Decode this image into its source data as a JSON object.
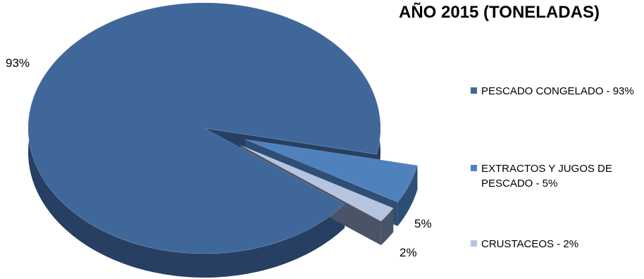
{
  "chart_data": {
    "type": "pie",
    "title": "AÑO 2015 (TONELADAS)",
    "categories": [
      "PESCADO CONGELADO",
      "EXTRACTOS Y JUGOS DE PESCADO",
      "CRUSTACEOS"
    ],
    "values": [
      93,
      5,
      2
    ],
    "data_labels": [
      "93%",
      "5%",
      "2%"
    ],
    "legend_entries": [
      "PESCADO CONGELADO - 93%",
      "EXTRACTOS Y JUGOS DE PESCADO - 5%",
      "CRUSTACEOS - 2%"
    ],
    "legend_position": "right",
    "style": "3d-exploded",
    "colors": [
      "#40679a",
      "#4f81bd",
      "#b6c4e0"
    ],
    "side_colors": [
      "#263f63",
      "#2f4e75",
      "#4a5466"
    ]
  }
}
